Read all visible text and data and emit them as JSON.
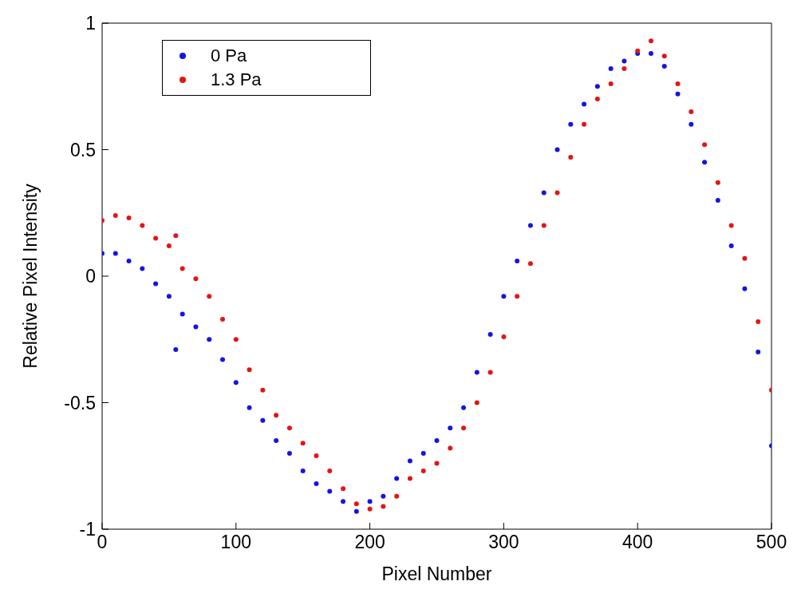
{
  "chart_data": {
    "type": "scatter",
    "xlabel": "Pixel Number",
    "ylabel": "Relative Pixel Intensity",
    "x": [
      0,
      10,
      20,
      30,
      40,
      50,
      55,
      60,
      70,
      80,
      90,
      100,
      110,
      120,
      130,
      140,
      150,
      160,
      170,
      180,
      190,
      200,
      210,
      220,
      230,
      240,
      250,
      260,
      270,
      280,
      290,
      300,
      310,
      320,
      330,
      340,
      350,
      360,
      370,
      380,
      390,
      400,
      410,
      420,
      430,
      440,
      450,
      460,
      470,
      480,
      490,
      500
    ],
    "series": [
      {
        "name": "0 Pa",
        "color": "#1414e6",
        "values": [
          0.09,
          0.09,
          0.06,
          0.03,
          -0.03,
          -0.08,
          -0.29,
          -0.15,
          -0.2,
          -0.25,
          -0.33,
          -0.42,
          -0.52,
          -0.57,
          -0.65,
          -0.7,
          -0.77,
          -0.82,
          -0.85,
          -0.89,
          -0.93,
          -0.89,
          -0.87,
          -0.8,
          -0.73,
          -0.7,
          -0.65,
          -0.6,
          -0.52,
          -0.38,
          -0.23,
          -0.08,
          0.06,
          0.2,
          0.33,
          0.5,
          0.6,
          0.68,
          0.75,
          0.82,
          0.85,
          0.88,
          0.88,
          0.83,
          0.72,
          0.6,
          0.45,
          0.3,
          0.12,
          -0.05,
          -0.3,
          -0.67
        ]
      },
      {
        "name": "1.3 Pa",
        "color": "#e61414",
        "values": [
          0.22,
          0.24,
          0.23,
          0.2,
          0.15,
          0.12,
          0.16,
          0.03,
          -0.01,
          -0.08,
          -0.17,
          -0.25,
          -0.37,
          -0.45,
          -0.55,
          -0.6,
          -0.66,
          -0.71,
          -0.77,
          -0.84,
          -0.9,
          -0.92,
          -0.91,
          -0.87,
          -0.8,
          -0.77,
          -0.74,
          -0.68,
          -0.6,
          -0.5,
          -0.38,
          -0.24,
          -0.08,
          0.05,
          0.2,
          0.33,
          0.47,
          0.6,
          0.7,
          0.76,
          0.82,
          0.89,
          0.93,
          0.87,
          0.76,
          0.65,
          0.52,
          0.37,
          0.2,
          0.07,
          -0.18,
          -0.45
        ]
      }
    ],
    "xlim": [
      0,
      500
    ],
    "xticks": [
      0,
      100,
      200,
      300,
      400,
      500
    ],
    "ylim": [
      -1,
      1
    ],
    "yticks": [
      -1,
      -0.5,
      0,
      0.5,
      1
    ],
    "grid": false,
    "legend": "top left",
    "marker": "circle"
  }
}
